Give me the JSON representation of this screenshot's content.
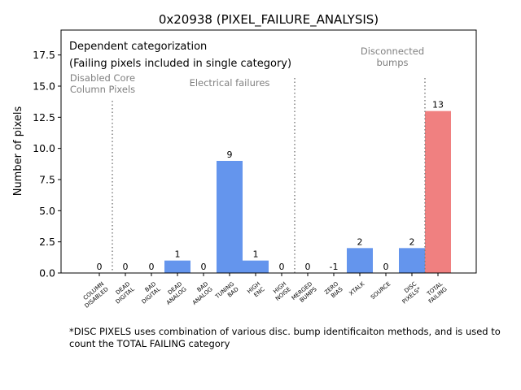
{
  "chart_data": {
    "type": "bar",
    "title": "0x20938 (PIXEL_FAILURE_ANALYSIS)",
    "xlabel": "",
    "ylabel": "Number of pixels",
    "ylim": [
      0,
      19.5
    ],
    "yticks": [
      "0.0",
      "2.5",
      "5.0",
      "7.5",
      "10.0",
      "12.5",
      "15.0",
      "17.5"
    ],
    "ytick_values": [
      0,
      2.5,
      5,
      7.5,
      10,
      12.5,
      15,
      17.5
    ],
    "categories": [
      "COLUMN\nDISABLED",
      "DEAD\nDIGITAL",
      "BAD\nDIGITAL",
      "DEAD\nANALOG",
      "BAD\nANALOG",
      "TUNING\nBAD",
      "HIGH\nENC",
      "HIGH\nNOISE",
      "MERGED\nBUMPS",
      "ZERO\nBIAS",
      "XTALK",
      "SOURCE",
      "DISC\nPIXELS*",
      "TOTAL\nFAILING"
    ],
    "values": [
      0,
      0,
      0,
      1,
      0,
      9,
      1,
      0,
      0,
      -1,
      2,
      0,
      2,
      13
    ],
    "value_labels": [
      "0",
      "0",
      "0",
      "1",
      "0",
      "9",
      "1",
      "0",
      "0",
      "-1",
      "2",
      "0",
      "2",
      "13"
    ],
    "colors": {
      "default": "#6495ED",
      "total": "#F08080",
      "divider": "#808080",
      "group_text": "#808080",
      "axis": "#000000"
    },
    "legend_text": [
      "Dependent categorization",
      "(Failing pixels included in single category)"
    ],
    "groups": [
      {
        "label": "Disabled Core\nColumn Pixels"
      },
      {
        "label": "Electrical failures"
      },
      {
        "label": "Disconnected\nbumps"
      }
    ],
    "divider_after_index": [
      0,
      7,
      12
    ],
    "footnote": "*DISC PIXELS uses combination of various disc. bump identificaiton methods, and is used to count the TOTAL FAILING category"
  }
}
